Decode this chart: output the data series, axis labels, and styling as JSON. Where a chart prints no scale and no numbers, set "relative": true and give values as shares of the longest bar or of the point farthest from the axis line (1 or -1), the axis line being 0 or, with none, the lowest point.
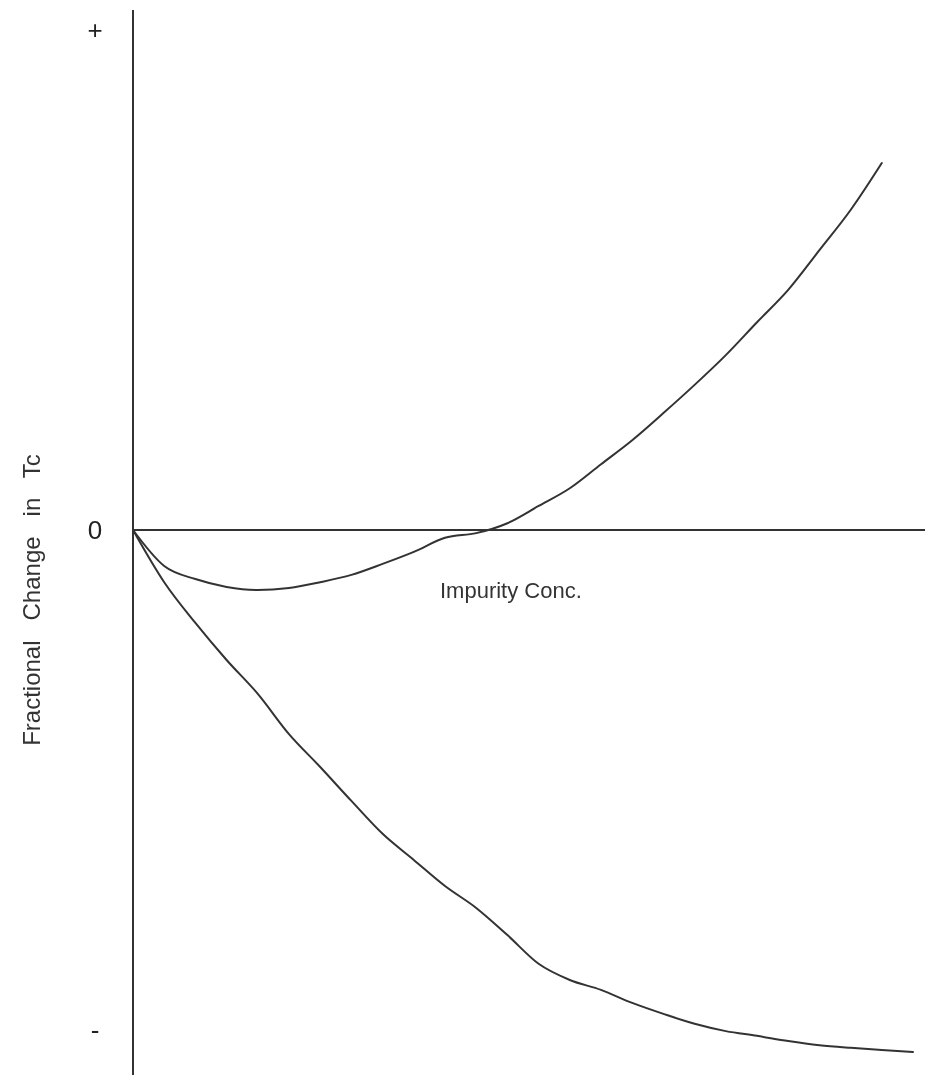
{
  "chart_data": {
    "type": "line",
    "relative": true,
    "xlabel": "Impurity   Conc.",
    "ylabel": "Fractional   Change   in   Tc",
    "annotations": [
      "+",
      "0",
      "-"
    ],
    "categories": [
      null,
      null,
      null,
      null,
      null,
      null,
      null,
      null,
      null,
      null,
      null,
      null,
      null,
      null,
      null,
      null,
      null,
      null,
      null,
      null,
      null,
      null,
      null,
      null,
      null,
      null
    ],
    "series": [
      {
        "color": "#333333",
        "values": [
          0,
          -0.069,
          -0.094,
          -0.109,
          -0.115,
          -0.111,
          -0.1,
          -0.086,
          -0.065,
          -0.042,
          -0.015,
          -0.006,
          0.013,
          0.046,
          0.08,
          0.126,
          0.172,
          0.224,
          0.278,
          0.335,
          0.398,
          0.46,
          0.536,
          0.613,
          0.703,
          null
        ]
      },
      {
        "color": "#333333",
        "values": [
          0,
          -0.1,
          -0.178,
          -0.249,
          -0.314,
          -0.391,
          -0.454,
          -0.519,
          -0.582,
          -0.632,
          -0.682,
          -0.724,
          -0.776,
          -0.831,
          -0.862,
          -0.881,
          -0.906,
          -0.927,
          -0.946,
          -0.96,
          -0.969,
          -0.979,
          -0.987,
          -0.992,
          -0.996,
          -1
        ]
      }
    ],
    "marker": "none",
    "line_style": "solid"
  }
}
